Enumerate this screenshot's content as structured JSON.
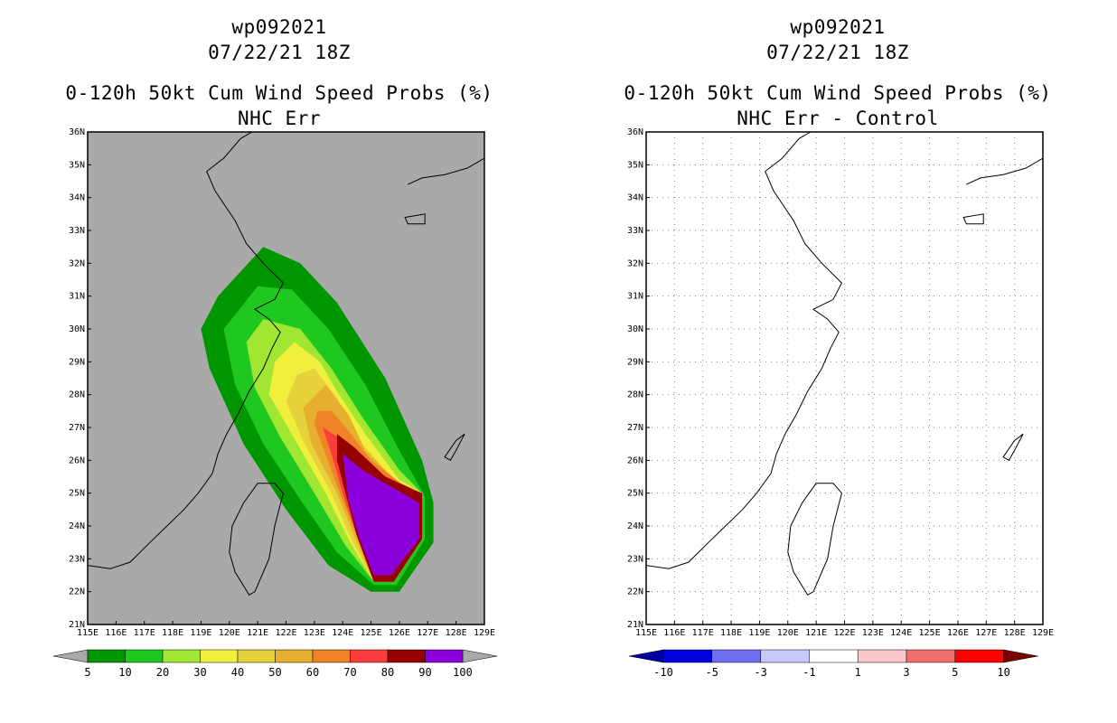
{
  "panels": [
    {
      "storm": "wp092021",
      "date": "07/22/21 18Z",
      "title": "0-120h 50kt Cum Wind Speed Probs (%)",
      "subtitle": "NHC Err",
      "background": "#a9a9a9",
      "colorbar": {
        "labels": [
          "5",
          "10",
          "20",
          "30",
          "40",
          "50",
          "60",
          "70",
          "80",
          "90",
          "100"
        ],
        "colors": [
          "#009600",
          "#1ec81e",
          "#a0e632",
          "#f0f03c",
          "#e6d23c",
          "#e6af2d",
          "#f08228",
          "#fa3c3c",
          "#960000",
          "#8c00dc"
        ],
        "under": "#a9a9a9",
        "over": "#a9a9a9"
      }
    },
    {
      "storm": "wp092021",
      "date": "07/22/21 18Z",
      "title": "0-120h 50kt Cum Wind Speed Probs (%)",
      "subtitle": "NHC Err - Control",
      "background": "#ffffff",
      "colorbar": {
        "labels": [
          "-10",
          "-5",
          "-3",
          "-1",
          "1",
          "3",
          "5",
          "10"
        ],
        "colors": [
          "#0000dc",
          "#6e6ef0",
          "#c8c8fa",
          "#ffffff",
          "#fac8c8",
          "#f06e6e",
          "#ff0000"
        ],
        "under": "#0000a0",
        "over": "#780000"
      }
    }
  ],
  "chart_data": {
    "type": "heatmap",
    "lon_ticks": [
      "115E",
      "116E",
      "117E",
      "118E",
      "119E",
      "120E",
      "121E",
      "122E",
      "123E",
      "124E",
      "125E",
      "126E",
      "127E",
      "128E",
      "129E"
    ],
    "lat_ticks": [
      "21N",
      "22N",
      "23N",
      "24N",
      "25N",
      "26N",
      "27N",
      "28N",
      "29N",
      "30N",
      "31N",
      "32N",
      "33N",
      "34N",
      "35N",
      "36N"
    ],
    "xlim": [
      115,
      129
    ],
    "ylim": [
      21,
      36
    ],
    "probability_contours": [
      {
        "level": 5,
        "points": [
          [
            121.2,
            32.5
          ],
          [
            122.5,
            32.0
          ],
          [
            123.8,
            30.8
          ],
          [
            125.5,
            28.5
          ],
          [
            126.8,
            26.0
          ],
          [
            127.2,
            24.7
          ],
          [
            127.2,
            23.5
          ],
          [
            126.0,
            22.0
          ],
          [
            125.0,
            22.0
          ],
          [
            123.5,
            22.8
          ],
          [
            122.0,
            24.5
          ],
          [
            120.5,
            26.5
          ],
          [
            119.3,
            28.8
          ],
          [
            119.0,
            30.0
          ],
          [
            119.6,
            31.0
          ]
        ]
      },
      {
        "level": 10,
        "points": [
          [
            121.0,
            31.3
          ],
          [
            122.2,
            31.2
          ],
          [
            123.5,
            30.0
          ],
          [
            124.8,
            28.3
          ],
          [
            126.0,
            26.3
          ],
          [
            126.9,
            24.9
          ],
          [
            126.9,
            23.6
          ],
          [
            125.9,
            22.2
          ],
          [
            125.1,
            22.2
          ],
          [
            123.8,
            23.2
          ],
          [
            122.5,
            24.8
          ],
          [
            121.2,
            26.5
          ],
          [
            120.2,
            28.3
          ],
          [
            119.8,
            30.0
          ]
        ]
      },
      {
        "level": 20,
        "points": [
          [
            121.2,
            30.3
          ],
          [
            122.5,
            30.0
          ],
          [
            123.6,
            28.8
          ],
          [
            124.7,
            27.3
          ],
          [
            126.0,
            25.7
          ],
          [
            126.8,
            25.0
          ],
          [
            126.8,
            23.6
          ],
          [
            125.8,
            22.3
          ],
          [
            125.1,
            22.3
          ],
          [
            124.1,
            23.4
          ],
          [
            123.0,
            25.0
          ],
          [
            121.8,
            26.7
          ],
          [
            120.9,
            28.2
          ],
          [
            120.6,
            29.6
          ]
        ]
      },
      {
        "level": 30,
        "points": [
          [
            122.3,
            29.6
          ],
          [
            123.2,
            29.0
          ],
          [
            123.8,
            28.1
          ],
          [
            124.8,
            26.8
          ],
          [
            126.0,
            25.4
          ],
          [
            126.8,
            25.0
          ],
          [
            126.8,
            23.6
          ],
          [
            125.8,
            22.3
          ],
          [
            125.1,
            22.3
          ],
          [
            124.2,
            23.6
          ],
          [
            123.4,
            25.0
          ],
          [
            122.2,
            26.8
          ],
          [
            121.4,
            28.0
          ],
          [
            121.6,
            29.0
          ]
        ]
      },
      {
        "level": 40,
        "points": [
          [
            123.0,
            28.8
          ],
          [
            123.8,
            27.9
          ],
          [
            124.6,
            26.6
          ],
          [
            126.0,
            25.2
          ],
          [
            126.8,
            25.0
          ],
          [
            126.8,
            23.6
          ],
          [
            125.8,
            22.3
          ],
          [
            125.1,
            22.3
          ],
          [
            124.3,
            23.6
          ],
          [
            123.6,
            25.0
          ],
          [
            122.6,
            26.6
          ],
          [
            122.0,
            27.8
          ],
          [
            122.4,
            28.6
          ]
        ]
      },
      {
        "level": 50,
        "points": [
          [
            123.4,
            28.3
          ],
          [
            124.2,
            27.4
          ],
          [
            124.8,
            26.3
          ],
          [
            126.1,
            25.2
          ],
          [
            126.8,
            25.0
          ],
          [
            126.8,
            23.6
          ],
          [
            125.8,
            22.3
          ],
          [
            125.1,
            22.3
          ],
          [
            124.4,
            23.7
          ],
          [
            123.8,
            25.0
          ],
          [
            122.9,
            26.5
          ],
          [
            122.6,
            27.6
          ]
        ]
      },
      {
        "level": 60,
        "points": [
          [
            123.1,
            27.5
          ],
          [
            123.6,
            27.5
          ],
          [
            124.2,
            26.9
          ],
          [
            125.0,
            26.0
          ],
          [
            126.2,
            25.2
          ],
          [
            126.8,
            25.0
          ],
          [
            126.8,
            23.6
          ],
          [
            125.8,
            22.3
          ],
          [
            125.1,
            22.3
          ],
          [
            124.5,
            23.7
          ],
          [
            123.9,
            25.0
          ],
          [
            123.3,
            26.4
          ],
          [
            123.0,
            27.1
          ]
        ]
      },
      {
        "level": 70,
        "points": [
          [
            123.3,
            27.0
          ],
          [
            124.0,
            26.6
          ],
          [
            125.3,
            25.6
          ],
          [
            126.3,
            25.2
          ],
          [
            126.8,
            25.0
          ],
          [
            126.8,
            23.6
          ],
          [
            125.8,
            22.3
          ],
          [
            125.1,
            22.3
          ],
          [
            124.5,
            23.7
          ],
          [
            124.0,
            25.0
          ],
          [
            123.6,
            26.2
          ]
        ]
      },
      {
        "level": 80,
        "points": [
          [
            123.8,
            26.8
          ],
          [
            124.4,
            26.4
          ],
          [
            125.5,
            25.5
          ],
          [
            126.5,
            25.1
          ],
          [
            126.8,
            25.0
          ],
          [
            126.8,
            23.6
          ],
          [
            125.8,
            22.3
          ],
          [
            125.1,
            22.3
          ],
          [
            124.5,
            23.7
          ],
          [
            124.1,
            25.0
          ],
          [
            123.8,
            26.0
          ]
        ]
      },
      {
        "level": 90,
        "points": [
          [
            124.0,
            26.2
          ],
          [
            124.7,
            25.7
          ],
          [
            125.7,
            25.2
          ],
          [
            126.7,
            24.7
          ],
          [
            126.7,
            23.6
          ],
          [
            125.7,
            22.5
          ],
          [
            125.1,
            22.5
          ],
          [
            124.6,
            23.6
          ],
          [
            124.2,
            24.8
          ]
        ]
      }
    ],
    "difference_field": "near zero everywhere (all values between -1 and 1)"
  }
}
